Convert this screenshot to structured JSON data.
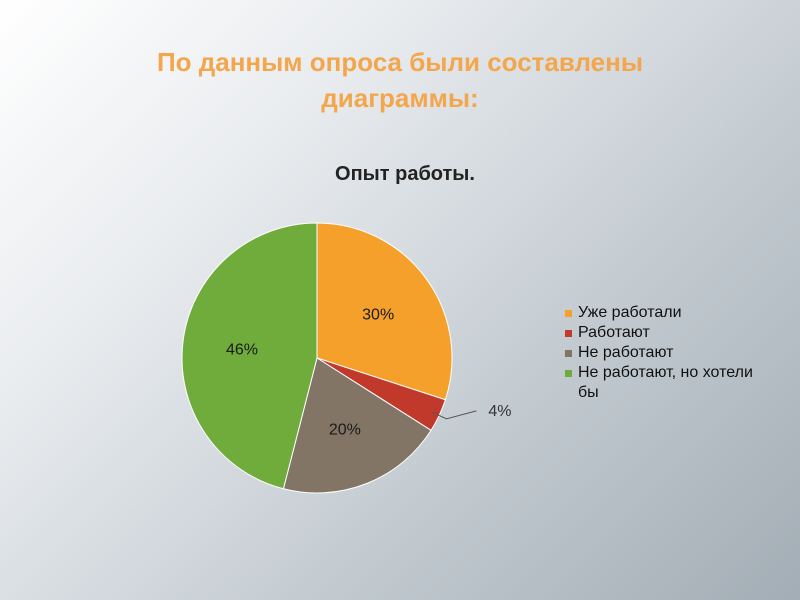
{
  "slide": {
    "title_line1": "По данным опроса были составлены",
    "title_line2": "диаграммы:"
  },
  "chart_data": {
    "type": "pie",
    "title": "Опыт работы.",
    "categories": [
      "Уже работали",
      "Работают",
      "Не работают",
      "Не работают, но хотели бы"
    ],
    "values": [
      30,
      4,
      20,
      46
    ],
    "data_labels": [
      "30%",
      "4%",
      "20%",
      "46%"
    ],
    "colors": [
      "#f5a02b",
      "#c0392b",
      "#837566",
      "#6fac3c"
    ],
    "legend_position": "right"
  }
}
